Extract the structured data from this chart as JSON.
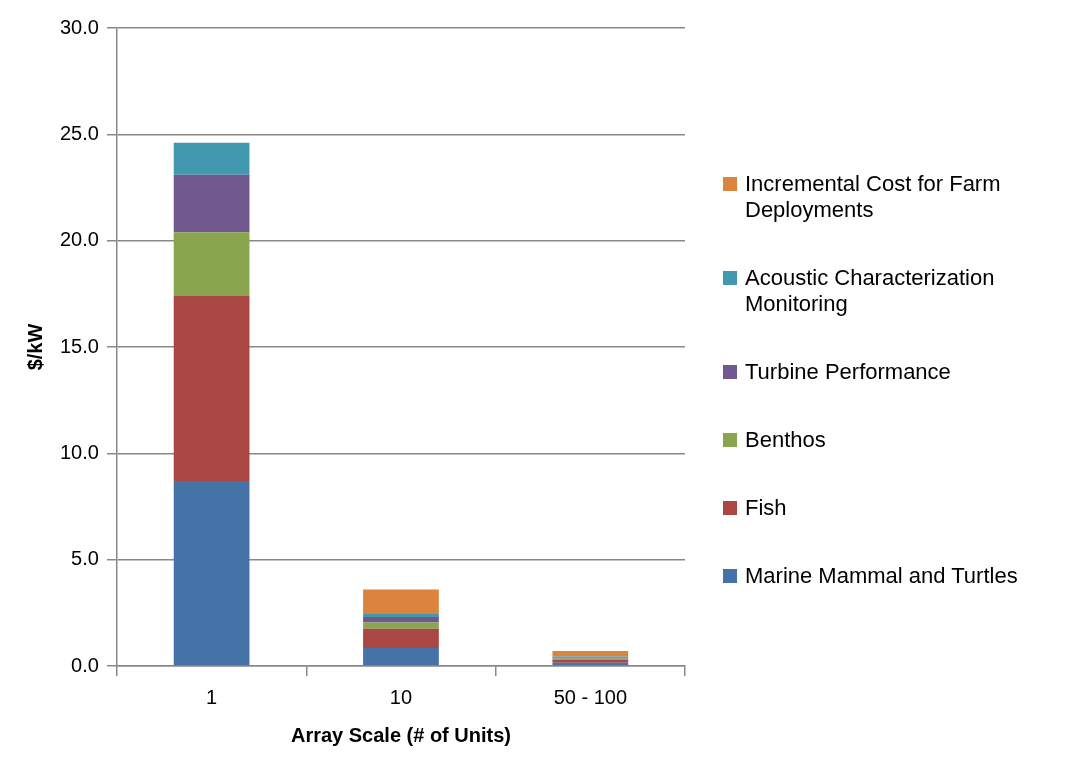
{
  "chart_data": {
    "type": "bar",
    "stacked": true,
    "xlabel": "Array Scale (# of Units)",
    "ylabel": "$/kW",
    "categories": [
      "1",
      "10",
      "50 - 100"
    ],
    "series": [
      {
        "name": "Marine Mammal and Turtles",
        "color": "#4572a7",
        "values": [
          8.7,
          0.85,
          0.15
        ]
      },
      {
        "name": "Fish",
        "color": "#aa4643",
        "values": [
          8.7,
          0.9,
          0.15
        ]
      },
      {
        "name": "Benthos",
        "color": "#89a54e",
        "values": [
          3.0,
          0.3,
          0.05
        ]
      },
      {
        "name": "Turbine Performance",
        "color": "#71588f",
        "values": [
          2.7,
          0.25,
          0.05
        ]
      },
      {
        "name": "Acoustic Characterization Monitoring",
        "color": "#4198af",
        "values": [
          1.5,
          0.15,
          0.05
        ]
      },
      {
        "name": "Incremental Cost for Farm Deployments",
        "color": "#db843d",
        "values": [
          null,
          1.15,
          0.25
        ]
      }
    ],
    "ylim": [
      0,
      30
    ],
    "yticks": [
      {
        "value": 0,
        "label": "0.0"
      },
      {
        "value": 5,
        "label": "5.0"
      },
      {
        "value": 10,
        "label": "10.0"
      },
      {
        "value": 15,
        "label": "15.0"
      },
      {
        "value": 20,
        "label": "20.0"
      },
      {
        "value": 25,
        "label": "25.0"
      },
      {
        "value": 30,
        "label": "30.0"
      }
    ],
    "grid": "y",
    "legend": "right"
  }
}
